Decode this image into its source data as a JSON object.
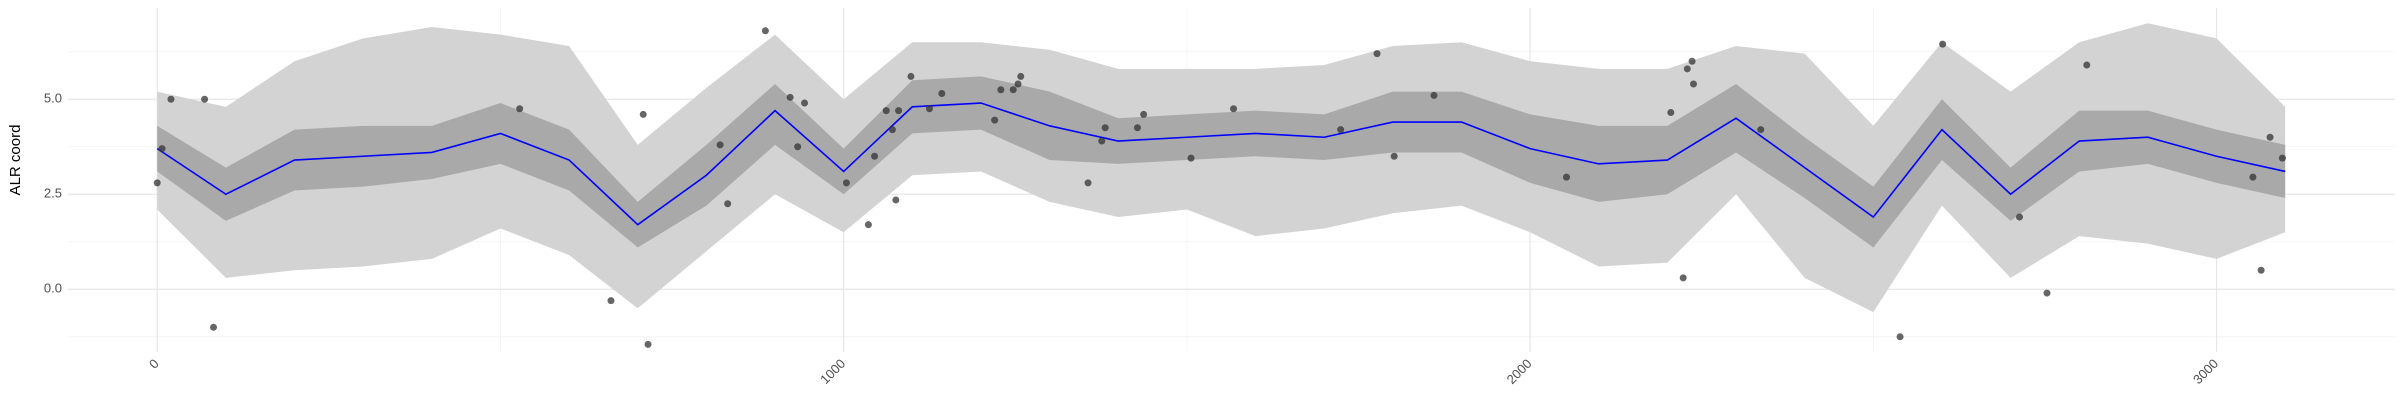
{
  "chart_data": {
    "type": "line",
    "y_label": "ALR coord",
    "x": [
      0,
      100,
      200,
      300,
      400,
      500,
      600,
      700,
      800,
      900,
      1000,
      1100,
      1200,
      1300,
      1400,
      1500,
      1600,
      1700,
      1800,
      1900,
      2000,
      2100,
      2200,
      2300,
      2400,
      2500,
      2600,
      2700,
      2800,
      2900,
      3000,
      3100
    ],
    "bands": [
      {
        "color": "#d3d3d3",
        "lower": [
          2.1,
          0.3,
          0.5,
          0.6,
          0.8,
          1.6,
          0.9,
          -0.5,
          1.0,
          2.5,
          1.5,
          3.0,
          3.1,
          2.3,
          1.9,
          2.1,
          1.4,
          1.6,
          2.0,
          2.2,
          1.5,
          0.6,
          0.7,
          2.5,
          0.3,
          -0.6,
          2.2,
          0.3,
          1.4,
          1.2,
          0.8,
          1.5
        ],
        "upper": [
          5.2,
          4.8,
          6.0,
          6.6,
          6.9,
          6.7,
          6.4,
          3.8,
          5.3,
          6.7,
          5.0,
          6.5,
          6.5,
          6.3,
          5.8,
          5.8,
          5.8,
          5.9,
          6.4,
          6.5,
          6.0,
          5.8,
          5.8,
          6.4,
          6.2,
          4.3,
          6.5,
          5.2,
          6.5,
          7.0,
          6.6,
          4.8
        ]
      },
      {
        "color": "#a9a9a9",
        "lower": [
          3.1,
          1.8,
          2.6,
          2.7,
          2.9,
          3.3,
          2.6,
          1.1,
          2.2,
          3.8,
          2.5,
          4.1,
          4.2,
          3.4,
          3.3,
          3.4,
          3.5,
          3.4,
          3.6,
          3.6,
          2.8,
          2.3,
          2.5,
          3.6,
          2.4,
          1.1,
          3.4,
          1.8,
          3.1,
          3.3,
          2.8,
          2.4
        ],
        "upper": [
          4.3,
          3.2,
          4.2,
          4.3,
          4.3,
          4.9,
          4.2,
          2.3,
          3.8,
          5.4,
          3.7,
          5.5,
          5.6,
          5.2,
          4.5,
          4.6,
          4.7,
          4.6,
          5.2,
          5.2,
          4.6,
          4.3,
          4.3,
          5.4,
          4.0,
          2.7,
          5.0,
          3.2,
          4.7,
          4.7,
          4.2,
          3.8
        ]
      }
    ],
    "line": {
      "color": "#0000ff",
      "values": [
        3.7,
        2.5,
        3.4,
        3.5,
        3.6,
        4.1,
        3.4,
        1.7,
        3.0,
        4.7,
        3.1,
        4.8,
        4.9,
        4.3,
        3.9,
        4.0,
        4.1,
        4.0,
        4.4,
        4.4,
        3.7,
        3.3,
        3.4,
        4.5,
        3.2,
        1.9,
        4.2,
        2.5,
        3.9,
        4.0,
        3.5,
        3.1
      ]
    },
    "points": {
      "color": "#333333",
      "x": [
        0,
        7,
        20,
        69,
        82,
        528,
        661,
        708,
        715,
        820,
        831,
        886,
        922,
        933,
        943,
        1004,
        1036,
        1045,
        1062,
        1071,
        1076,
        1080,
        1098,
        1125,
        1143,
        1220,
        1229,
        1247,
        1254,
        1258,
        1356,
        1376,
        1381,
        1428,
        1437,
        1506,
        1568,
        1724,
        1777,
        1802,
        1860,
        2053,
        2205,
        2223,
        2229,
        2236,
        2238,
        2336,
        2539,
        2601,
        2713,
        2753,
        2811,
        3053,
        3065,
        3078,
        3096
      ],
      "y": [
        2.8,
        3.7,
        5.0,
        5.0,
        -1.0,
        4.75,
        -0.3,
        4.6,
        -1.45,
        3.8,
        2.25,
        6.8,
        5.05,
        3.75,
        4.9,
        2.8,
        1.7,
        3.5,
        4.7,
        4.2,
        2.35,
        4.7,
        5.6,
        4.75,
        5.15,
        4.45,
        5.25,
        5.25,
        5.4,
        5.6,
        2.8,
        3.9,
        4.25,
        4.25,
        4.6,
        3.45,
        4.75,
        4.2,
        6.2,
        3.5,
        5.1,
        2.95,
        4.65,
        0.3,
        5.8,
        6.0,
        5.4,
        4.2,
        -1.25,
        6.45,
        1.9,
        -0.1,
        5.9,
        2.95,
        0.5,
        4.0,
        3.45
      ]
    },
    "xlim": [
      -130,
      3260
    ],
    "ylim": [
      -1.65,
      7.4
    ],
    "xticks": [
      0,
      1000,
      2000,
      3000
    ],
    "yticks": [
      {
        "value": 0,
        "label": "0.0"
      },
      {
        "value": 2.5,
        "label": "2.5"
      },
      {
        "value": 5,
        "label": "5.0"
      }
    ],
    "xminor": [
      500,
      1500,
      2500
    ],
    "yminor": [
      -1.25,
      1.25,
      3.75,
      6.25
    ],
    "grid": true
  }
}
